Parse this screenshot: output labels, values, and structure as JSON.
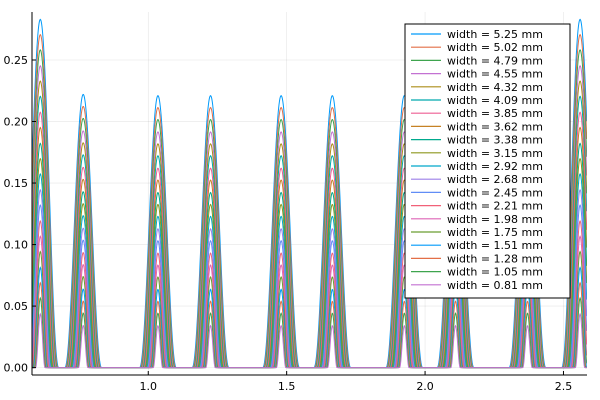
{
  "chart_data": {
    "type": "line",
    "title": "",
    "xlabel": "",
    "ylabel": "",
    "xlim": [
      0.58,
      2.585
    ],
    "ylim": [
      -0.006,
      0.289
    ],
    "xticks": [
      {
        "value": 1.0,
        "label": "1.0"
      },
      {
        "value": 1.5,
        "label": "1.5"
      },
      {
        "value": 2.0,
        "label": "2.0"
      },
      {
        "value": 2.5,
        "label": "2.5"
      }
    ],
    "yticks": [
      {
        "value": 0.0,
        "label": "0.00"
      },
      {
        "value": 0.05,
        "label": "0.05"
      },
      {
        "value": 0.1,
        "label": "0.10"
      },
      {
        "value": 0.15,
        "label": "0.15"
      },
      {
        "value": 0.2,
        "label": "0.20"
      },
      {
        "value": 0.25,
        "label": "0.25"
      }
    ],
    "grid": true,
    "legend": "top-right",
    "peaks": [
      {
        "x": 0.61,
        "h": 0.283
      },
      {
        "x": 0.765,
        "h": 0.222
      },
      {
        "x": 1.035,
        "h": 0.221
      },
      {
        "x": 1.225,
        "h": 0.221
      },
      {
        "x": 1.48,
        "h": 0.221
      },
      {
        "x": 1.665,
        "h": 0.221
      },
      {
        "x": 1.925,
        "h": 0.221
      },
      {
        "x": 2.11,
        "h": 0.221
      },
      {
        "x": 2.37,
        "h": 0.221
      },
      {
        "x": 2.56,
        "h": 0.283
      }
    ],
    "series": [
      {
        "name": "width = 5.25 mm",
        "width": 5.25,
        "color": "#009AFA"
      },
      {
        "name": "width = 5.02 mm",
        "width": 5.02,
        "color": "#E36F47"
      },
      {
        "name": "width = 4.79 mm",
        "width": 4.79,
        "color": "#3EA44E"
      },
      {
        "name": "width = 4.55 mm",
        "width": 4.55,
        "color": "#C371D2"
      },
      {
        "name": "width = 4.32 mm",
        "width": 4.32,
        "color": "#AC8E18"
      },
      {
        "name": "width = 4.09 mm",
        "width": 4.09,
        "color": "#00A9AD"
      },
      {
        "name": "width = 3.85 mm",
        "width": 3.85,
        "color": "#ED5E93"
      },
      {
        "name": "width = 3.62 mm",
        "width": 3.62,
        "color": "#C68225"
      },
      {
        "name": "width = 3.38 mm",
        "width": 3.38,
        "color": "#00A98D"
      },
      {
        "name": "width = 3.15 mm",
        "width": 3.15,
        "color": "#8E971E"
      },
      {
        "name": "width = 2.92 mm",
        "width": 2.92,
        "color": "#00A8CB"
      },
      {
        "name": "width = 2.68 mm",
        "width": 2.68,
        "color": "#9B7FE9"
      },
      {
        "name": "width = 2.45 mm",
        "width": 2.45,
        "color": "#618DF6"
      },
      {
        "name": "width = 2.21 mm",
        "width": 2.21,
        "color": "#F16178"
      },
      {
        "name": "width = 1.98 mm",
        "width": 1.98,
        "color": "#DD64B5"
      },
      {
        "name": "width = 1.75 mm",
        "width": 1.75,
        "color": "#6B9E32"
      },
      {
        "name": "width = 1.51 mm",
        "width": 1.51,
        "color": "#009AFA"
      },
      {
        "name": "width = 1.28 mm",
        "width": 1.28,
        "color": "#E36F47"
      },
      {
        "name": "width = 1.05 mm",
        "width": 1.05,
        "color": "#3EA44E"
      },
      {
        "name": "width = 0.81 mm",
        "width": 0.81,
        "color": "#C371D2"
      }
    ]
  }
}
